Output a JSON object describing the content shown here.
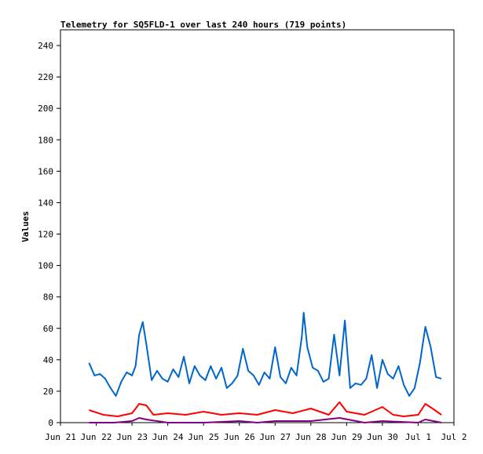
{
  "chart_data": {
    "type": "line",
    "title": "Telemetry for SQ5FLD-1 over last 240 hours (719 points)",
    "xlabel": "",
    "ylabel": "Values",
    "ylim": [
      0,
      250
    ],
    "yticks": [
      0,
      20,
      40,
      60,
      80,
      100,
      120,
      140,
      160,
      180,
      200,
      220,
      240
    ],
    "xlim": [
      "Jun 21",
      "Jul 2"
    ],
    "xticks": [
      "Jun 21",
      "Jun 22",
      "Jun 23",
      "Jun 24",
      "Jun 25",
      "Jun 26",
      "Jun 27",
      "Jun 28",
      "Jun 29",
      "Jun 30",
      "Jul 1",
      "Jul 2"
    ],
    "grid": false,
    "series": [
      {
        "color": "#0066cc",
        "x": [
          0.8,
          0.95,
          1.1,
          1.25,
          1.4,
          1.55,
          1.7,
          1.85,
          2.0,
          2.1,
          2.2,
          2.3,
          2.4,
          2.55,
          2.7,
          2.85,
          3.0,
          3.15,
          3.3,
          3.45,
          3.6,
          3.75,
          3.9,
          4.05,
          4.2,
          4.35,
          4.5,
          4.65,
          4.8,
          4.95,
          5.1,
          5.25,
          5.4,
          5.55,
          5.7,
          5.85,
          6.0,
          6.15,
          6.3,
          6.45,
          6.6,
          6.75,
          6.8,
          6.9,
          7.05,
          7.2,
          7.35,
          7.5,
          7.65,
          7.8,
          7.95,
          8.1,
          8.25,
          8.4,
          8.55,
          8.7,
          8.85,
          9.0,
          9.15,
          9.3,
          9.45,
          9.6,
          9.75,
          9.9,
          10.05,
          10.2,
          10.35,
          10.5,
          10.65
        ],
        "values": [
          38,
          30,
          31,
          28,
          22,
          17,
          26,
          32,
          30,
          36,
          56,
          64,
          50,
          27,
          33,
          28,
          26,
          34,
          29,
          42,
          25,
          36,
          30,
          27,
          36,
          28,
          35,
          22,
          25,
          30,
          47,
          33,
          30,
          24,
          32,
          28,
          48,
          29,
          25,
          35,
          30,
          55,
          70,
          48,
          35,
          33,
          26,
          28,
          56,
          30,
          65,
          22,
          25,
          24,
          28,
          43,
          22,
          40,
          31,
          28,
          36,
          24,
          17,
          22,
          38,
          61,
          48,
          29,
          28
        ]
      },
      {
        "color": "#ff0000",
        "x": [
          0.8,
          1.2,
          1.6,
          2.0,
          2.2,
          2.4,
          2.6,
          3.0,
          3.5,
          4.0,
          4.5,
          5.0,
          5.5,
          6.0,
          6.5,
          7.0,
          7.5,
          7.8,
          8.0,
          8.5,
          9.0,
          9.3,
          9.6,
          10.0,
          10.2,
          10.4,
          10.65
        ],
        "values": [
          8,
          5,
          4,
          6,
          12,
          11,
          5,
          6,
          5,
          7,
          5,
          6,
          5,
          8,
          6,
          9,
          5,
          13,
          7,
          5,
          10,
          5,
          4,
          5,
          12,
          9,
          5
        ]
      },
      {
        "color": "#800080",
        "x": [
          0.8,
          1.5,
          2.0,
          2.2,
          2.4,
          3.0,
          4.0,
          5.0,
          5.5,
          6.0,
          7.0,
          7.8,
          8.5,
          9.0,
          10.0,
          10.2,
          10.65
        ],
        "values": [
          0,
          0,
          1,
          3,
          2,
          0,
          0,
          1,
          0,
          1,
          1,
          3,
          0,
          1,
          0,
          2,
          0
        ]
      }
    ]
  }
}
